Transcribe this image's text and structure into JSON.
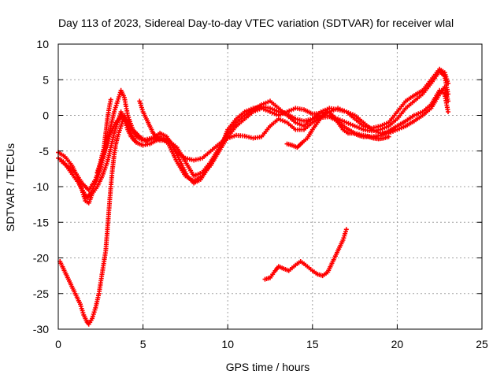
{
  "chart_data": {
    "type": "scatter",
    "title": "Day 113 of 2023, Sidereal Day-to-day VTEC variation (SDTVAR) for receiver wlal",
    "xlabel": "GPS time / hours",
    "ylabel": "SDTVAR / TECUs",
    "xlim": [
      0,
      25
    ],
    "ylim": [
      -30,
      10
    ],
    "xticks": [
      0,
      5,
      10,
      15,
      20,
      25
    ],
    "yticks": [
      -30,
      -25,
      -20,
      -15,
      -10,
      -5,
      0,
      5,
      10
    ],
    "grid": true,
    "marker": "+",
    "color": "#ff0000",
    "series": [
      {
        "points": [
          [
            0.0,
            -5.2
          ],
          [
            0.4,
            -5.8
          ],
          [
            0.8,
            -7.0
          ],
          [
            1.1,
            -8.5
          ],
          [
            1.4,
            -10.5
          ],
          [
            1.6,
            -12.0
          ],
          [
            1.8,
            -12.3
          ],
          [
            2.0,
            -11.0
          ],
          [
            2.3,
            -10.0
          ],
          [
            2.6,
            -8.5
          ],
          [
            2.9,
            -6.5
          ],
          [
            3.1,
            -4.5
          ],
          [
            3.3,
            -2.5
          ],
          [
            3.5,
            -1.0
          ],
          [
            3.7,
            0.5
          ],
          [
            3.9,
            -0.5
          ],
          [
            4.1,
            -2.0
          ],
          [
            4.3,
            -3.0
          ],
          [
            4.6,
            -3.8
          ],
          [
            5.0,
            -4.2
          ],
          [
            5.4,
            -4.0
          ],
          [
            5.8,
            -3.5
          ],
          [
            6.2,
            -3.2
          ],
          [
            6.6,
            -3.8
          ],
          [
            7.0,
            -5.2
          ],
          [
            7.5,
            -6.0
          ],
          [
            8.0,
            -6.3
          ],
          [
            8.5,
            -6.0
          ],
          [
            9.0,
            -5.0
          ],
          [
            9.5,
            -4.0
          ],
          [
            10.0,
            -3.2
          ],
          [
            10.5,
            -2.8
          ],
          [
            11.0,
            -2.9
          ],
          [
            11.5,
            -3.2
          ],
          [
            12.0,
            -3.0
          ],
          [
            12.5,
            -1.5
          ],
          [
            13.0,
            -0.5
          ],
          [
            13.5,
            -1.0
          ],
          [
            14.0,
            -2.0
          ],
          [
            14.5,
            -2.0
          ],
          [
            15.0,
            -1.0
          ],
          [
            15.5,
            -0.3
          ],
          [
            16.0,
            -0.2
          ],
          [
            16.5,
            -0.8
          ],
          [
            17.0,
            -1.8
          ],
          [
            17.5,
            -2.5
          ],
          [
            18.0,
            -2.8
          ],
          [
            18.5,
            -3.0
          ],
          [
            19.0,
            -2.8
          ],
          [
            19.5,
            -2.2
          ],
          [
            20.0,
            -1.5
          ],
          [
            20.5,
            -0.8
          ],
          [
            21.0,
            0.0
          ],
          [
            21.5,
            0.5
          ],
          [
            22.0,
            1.5
          ],
          [
            22.5,
            3.5
          ],
          [
            22.8,
            3.0
          ],
          [
            23.0,
            0.5
          ]
        ]
      },
      {
        "points": [
          [
            0.0,
            -6.0
          ],
          [
            0.3,
            -6.5
          ],
          [
            0.6,
            -7.5
          ],
          [
            0.9,
            -8.5
          ],
          [
            1.2,
            -9.5
          ],
          [
            1.5,
            -10.8
          ],
          [
            1.7,
            -11.5
          ],
          [
            1.9,
            -11.0
          ],
          [
            2.2,
            -9.5
          ],
          [
            2.5,
            -7.5
          ],
          [
            2.7,
            -5.5
          ],
          [
            2.9,
            -3.5
          ],
          [
            3.1,
            -1.5
          ],
          [
            3.3,
            0.5
          ],
          [
            3.5,
            2.0
          ],
          [
            3.7,
            3.5
          ],
          [
            3.9,
            2.5
          ],
          [
            4.1,
            0.0
          ],
          [
            4.4,
            -2.0
          ],
          [
            4.8,
            -3.0
          ],
          [
            5.2,
            -3.6
          ],
          [
            5.6,
            -3.2
          ],
          [
            6.0,
            -2.5
          ],
          [
            6.4,
            -3.0
          ],
          [
            6.8,
            -4.5
          ],
          [
            7.2,
            -6.5
          ],
          [
            7.6,
            -8.5
          ],
          [
            8.0,
            -9.5
          ],
          [
            8.4,
            -9.0
          ],
          [
            8.8,
            -7.5
          ],
          [
            9.2,
            -6.0
          ],
          [
            9.6,
            -4.5
          ],
          [
            10.0,
            -2.0
          ],
          [
            10.5,
            -0.5
          ],
          [
            11.0,
            0.5
          ],
          [
            11.5,
            1.0
          ],
          [
            12.0,
            1.2
          ],
          [
            12.5,
            1.0
          ],
          [
            13.0,
            0.5
          ],
          [
            13.5,
            0.2
          ],
          [
            14.0,
            -0.5
          ],
          [
            14.5,
            -0.8
          ],
          [
            15.0,
            -0.5
          ],
          [
            15.5,
            0.0
          ],
          [
            16.0,
            0.0
          ],
          [
            16.5,
            -0.5
          ],
          [
            17.0,
            -1.0
          ],
          [
            17.5,
            -1.5
          ],
          [
            18.0,
            -2.0
          ],
          [
            18.5,
            -2.2
          ],
          [
            19.0,
            -2.0
          ],
          [
            19.5,
            -1.5
          ],
          [
            20.0,
            -0.5
          ],
          [
            20.5,
            1.0
          ],
          [
            21.0,
            2.0
          ],
          [
            21.5,
            3.0
          ],
          [
            22.0,
            4.5
          ],
          [
            22.5,
            6.2
          ],
          [
            22.8,
            5.5
          ],
          [
            23.0,
            3.0
          ]
        ]
      },
      {
        "points": [
          [
            0.2,
            -6.5
          ],
          [
            0.6,
            -7.2
          ],
          [
            1.0,
            -8.0
          ],
          [
            1.4,
            -9.5
          ],
          [
            1.8,
            -10.5
          ],
          [
            2.2,
            -9.0
          ],
          [
            2.6,
            -6.0
          ],
          [
            3.0,
            -3.0
          ],
          [
            3.4,
            -1.0
          ],
          [
            3.8,
            0.0
          ],
          [
            4.2,
            -1.5
          ],
          [
            4.6,
            -3.0
          ],
          [
            5.0,
            -3.5
          ],
          [
            5.5,
            -3.2
          ],
          [
            6.0,
            -3.0
          ],
          [
            6.5,
            -4.0
          ],
          [
            7.0,
            -6.5
          ],
          [
            7.5,
            -8.5
          ],
          [
            8.0,
            -9.2
          ],
          [
            8.5,
            -8.5
          ],
          [
            9.0,
            -7.0
          ],
          [
            9.5,
            -5.0
          ],
          [
            10.0,
            -3.0
          ],
          [
            10.5,
            -1.5
          ],
          [
            11.0,
            -0.5
          ],
          [
            11.5,
            0.5
          ],
          [
            12.0,
            1.0
          ],
          [
            12.5,
            0.5
          ],
          [
            13.0,
            0.0
          ],
          [
            13.5,
            0.5
          ],
          [
            14.0,
            1.0
          ],
          [
            14.5,
            0.8
          ],
          [
            15.0,
            0.2
          ],
          [
            15.5,
            0.3
          ],
          [
            16.0,
            0.5
          ],
          [
            16.5,
            1.0
          ],
          [
            17.0,
            0.5
          ],
          [
            17.5,
            -0.5
          ],
          [
            18.0,
            -1.5
          ],
          [
            18.5,
            -1.8
          ],
          [
            19.0,
            -1.5
          ],
          [
            19.5,
            -1.0
          ],
          [
            20.0,
            0.5
          ],
          [
            20.5,
            2.0
          ],
          [
            21.0,
            2.8
          ],
          [
            21.5,
            3.5
          ],
          [
            22.0,
            5.0
          ],
          [
            22.5,
            6.5
          ],
          [
            22.8,
            6.0
          ],
          [
            23.0,
            4.5
          ]
        ]
      },
      {
        "points": [
          [
            4.8,
            2.0
          ],
          [
            5.0,
            0.5
          ],
          [
            5.3,
            -1.0
          ],
          [
            5.6,
            -2.5
          ],
          [
            6.0,
            -3.5
          ],
          [
            6.5,
            -3.5
          ],
          [
            7.0,
            -4.5
          ],
          [
            7.5,
            -6.5
          ],
          [
            8.0,
            -8.5
          ],
          [
            8.5,
            -8.0
          ],
          [
            9.0,
            -6.5
          ],
          [
            9.5,
            -4.5
          ],
          [
            10.0,
            -2.5
          ],
          [
            10.5,
            -1.0
          ],
          [
            11.0,
            0.0
          ],
          [
            11.5,
            0.8
          ],
          [
            12.0,
            1.5
          ],
          [
            12.5,
            2.0
          ],
          [
            13.0,
            1.0
          ],
          [
            13.5,
            0.0
          ],
          [
            14.0,
            -1.0
          ],
          [
            14.5,
            -1.5
          ],
          [
            15.0,
            -0.5
          ],
          [
            15.5,
            0.5
          ],
          [
            16.0,
            1.0
          ],
          [
            16.5,
            0.8
          ],
          [
            17.0,
            0.5
          ],
          [
            17.5,
            0.0
          ],
          [
            18.0,
            -1.0
          ],
          [
            18.5,
            -2.0
          ],
          [
            19.0,
            -2.5
          ],
          [
            19.5,
            -2.5
          ],
          [
            20.0,
            -2.0
          ],
          [
            20.5,
            -1.5
          ],
          [
            21.0,
            -0.8
          ],
          [
            21.5,
            0.0
          ],
          [
            22.0,
            1.0
          ],
          [
            22.5,
            3.0
          ],
          [
            22.8,
            4.0
          ],
          [
            23.0,
            2.0
          ]
        ]
      },
      {
        "points": [
          [
            13.5,
            -4.0
          ],
          [
            13.8,
            -4.2
          ],
          [
            14.1,
            -4.5
          ],
          [
            14.4,
            -3.8
          ],
          [
            14.7,
            -3.2
          ],
          [
            15.0,
            -2.0
          ],
          [
            15.3,
            -1.0
          ],
          [
            15.6,
            0.0
          ],
          [
            15.9,
            0.5
          ],
          [
            16.2,
            0.0
          ],
          [
            16.5,
            -1.0
          ],
          [
            16.8,
            -2.0
          ],
          [
            17.1,
            -2.5
          ],
          [
            17.4,
            -2.5
          ],
          [
            17.7,
            -2.8
          ],
          [
            18.0,
            -3.0
          ],
          [
            18.3,
            -3.0
          ],
          [
            18.6,
            -3.2
          ],
          [
            18.9,
            -3.3
          ],
          [
            19.2,
            -3.2
          ],
          [
            19.5,
            -3.0
          ]
        ]
      },
      {
        "points": [
          [
            0.1,
            -20.5
          ],
          [
            0.3,
            -21.5
          ],
          [
            0.5,
            -22.5
          ],
          [
            0.7,
            -23.5
          ],
          [
            0.9,
            -24.5
          ],
          [
            1.1,
            -25.5
          ],
          [
            1.3,
            -26.5
          ],
          [
            1.5,
            -28.0
          ],
          [
            1.7,
            -29.0
          ],
          [
            1.8,
            -29.3
          ],
          [
            2.0,
            -28.5
          ],
          [
            2.2,
            -27.0
          ],
          [
            2.4,
            -25.0
          ],
          [
            2.6,
            -22.0
          ],
          [
            2.8,
            -19.0
          ],
          [
            2.9,
            -16.0
          ],
          [
            3.0,
            -13.0
          ],
          [
            3.1,
            -10.0
          ],
          [
            3.2,
            -7.5
          ],
          [
            3.3,
            -5.5
          ],
          [
            3.4,
            -4.0
          ],
          [
            3.5,
            -3.0
          ],
          [
            3.7,
            -1.5
          ],
          [
            3.9,
            0.0
          ],
          [
            4.1,
            -1.0
          ],
          [
            4.3,
            -2.5
          ],
          [
            4.5,
            -3.5
          ]
        ]
      },
      {
        "points": [
          [
            2.3,
            -8.0
          ],
          [
            2.5,
            -6.5
          ],
          [
            2.7,
            -4.5
          ],
          [
            2.8,
            -2.5
          ],
          [
            2.9,
            -0.5
          ],
          [
            3.0,
            1.0
          ],
          [
            3.1,
            2.2
          ]
        ]
      },
      {
        "points": [
          [
            12.2,
            -23.0
          ],
          [
            12.5,
            -22.8
          ],
          [
            12.8,
            -21.8
          ],
          [
            13.0,
            -21.2
          ],
          [
            13.3,
            -21.5
          ],
          [
            13.6,
            -21.8
          ],
          [
            14.0,
            -21.0
          ],
          [
            14.3,
            -20.5
          ],
          [
            14.6,
            -21.0
          ],
          [
            15.0,
            -21.8
          ],
          [
            15.3,
            -22.3
          ],
          [
            15.6,
            -22.5
          ],
          [
            15.9,
            -22.0
          ],
          [
            16.2,
            -20.5
          ],
          [
            16.5,
            -19.0
          ],
          [
            16.8,
            -17.5
          ],
          [
            17.0,
            -16.0
          ]
        ]
      }
    ]
  }
}
